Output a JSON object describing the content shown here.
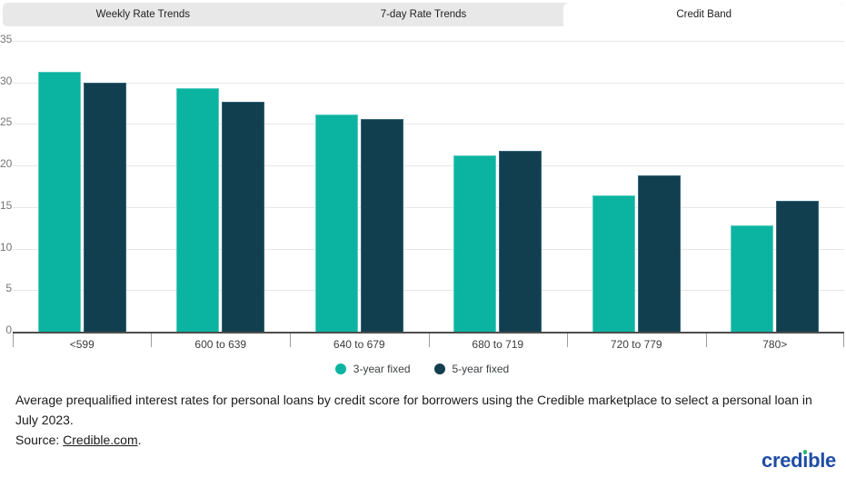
{
  "tabs": {
    "items": [
      {
        "label": "Weekly Rate Trends",
        "active": false
      },
      {
        "label": "7-day Rate Trends",
        "active": false
      },
      {
        "label": "Credit Band",
        "active": true
      }
    ]
  },
  "chart_data": {
    "type": "bar",
    "title": "",
    "categories": [
      "<599",
      "600 to 639",
      "640 to 679",
      "680 to 719",
      "720 to 779",
      "780>"
    ],
    "series": [
      {
        "name": "3-year fixed",
        "color": "#0bb4a1",
        "border_color": "#5accbe",
        "values": [
          31.3,
          29.3,
          26.1,
          21.2,
          16.4,
          12.8
        ]
      },
      {
        "name": "5-year fixed",
        "color": "#123f4f",
        "border_color": "#35657a",
        "values": [
          30.0,
          27.7,
          25.6,
          21.8,
          18.8,
          15.8
        ]
      }
    ],
    "ylim": [
      0,
      35
    ],
    "yticks": [
      0,
      5,
      10,
      15,
      20,
      25,
      30,
      35
    ],
    "grid": true,
    "legend_position": "bottom",
    "xlabel": "",
    "ylabel": ""
  },
  "caption": {
    "line1": "Average prequalified interest rates for personal loans by credit score for borrowers using the Credible marketplace to select a personal loan in July 2023.",
    "source_prefix": "Source: ",
    "source_link": "Credible.com",
    "source_suffix": "."
  },
  "logo": {
    "text": "credible"
  },
  "colors": {
    "tab_bg": "#e9e8e8",
    "grid": "#e7e7e7",
    "axis": "#4d4d4d",
    "tick": "#9e9e9e",
    "logo_blue": "#1e4da5",
    "logo_dot_green": "#2bb673"
  }
}
